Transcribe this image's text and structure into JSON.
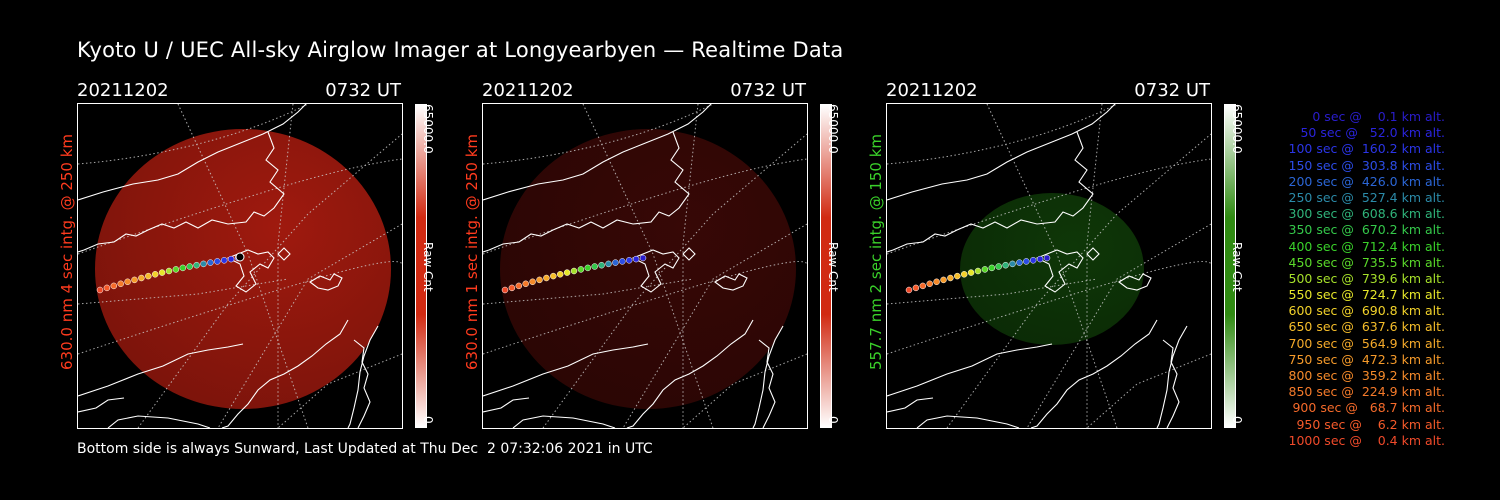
{
  "title": "Kyoto U / UEC All-sky Airglow Imager at Longyearbyen — Realtime Data",
  "footer": "Bottom side is always Sunward, Last Updated at Thu Dec  2 07:32:06 2021 in UTC",
  "panels": [
    {
      "date": "20211202",
      "time": "0732 UT",
      "side_label": "630.0 nm 4 sec intg. @ 250 km",
      "side_color": "#ff3b1e",
      "cbar_max": "65000.0",
      "cbar_min": "0",
      "cbar_unit": "Raw Cnt",
      "cbar_color": "#d12a12",
      "glow_color": "#b51d10",
      "glow_opacity": 0.88
    },
    {
      "date": "20211202",
      "time": "0732 UT",
      "side_label": "630.0 nm 1 sec intg. @ 250 km",
      "side_color": "#ff3b1e",
      "cbar_max": "65000.0",
      "cbar_min": "0",
      "cbar_unit": "Raw Cnt",
      "cbar_color": "#d12a12",
      "glow_color": "#3a0806",
      "glow_opacity": 0.95
    },
    {
      "date": "20211202",
      "time": "0732 UT",
      "side_label": "557.7 nm 2 sec intg. @ 150 km",
      "side_color": "#3ad12a",
      "cbar_max": "65000.0",
      "cbar_min": "0",
      "cbar_unit": "Raw Cnt",
      "cbar_color": "#2f8a12",
      "glow_color": "#0f3a08",
      "glow_opacity": 0.95
    }
  ],
  "legend": [
    {
      "text": "0 sec @    0.1 km alt.",
      "color": "#2a1dcc"
    },
    {
      "text": "50 sec @   52.0 km alt.",
      "color": "#2a24dd"
    },
    {
      "text": "100 sec @  160.2 km alt.",
      "color": "#2b35e6"
    },
    {
      "text": "150 sec @  303.8 km alt.",
      "color": "#2c4ce6"
    },
    {
      "text": "200 sec @  426.0 km alt.",
      "color": "#2b66d6"
    },
    {
      "text": "250 sec @  527.4 km alt.",
      "color": "#2b8aa8"
    },
    {
      "text": "300 sec @  608.6 km alt.",
      "color": "#2fb37a"
    },
    {
      "text": "350 sec @  670.2 km alt.",
      "color": "#34c84a"
    },
    {
      "text": "400 sec @  712.4 km alt.",
      "color": "#3ad12a"
    },
    {
      "text": "450 sec @  735.5 km alt.",
      "color": "#5ad82a"
    },
    {
      "text": "500 sec @  739.6 km alt.",
      "color": "#a6e02a"
    },
    {
      "text": "550 sec @  724.7 km alt.",
      "color": "#e6e62a"
    },
    {
      "text": "600 sec @  690.8 km alt.",
      "color": "#f2d22a"
    },
    {
      "text": "650 sec @  637.6 km alt.",
      "color": "#f5bd2a"
    },
    {
      "text": "700 sec @  564.9 km alt.",
      "color": "#f5aa2a"
    },
    {
      "text": "750 sec @  472.3 km alt.",
      "color": "#f59a2a"
    },
    {
      "text": "800 sec @  359.2 km alt.",
      "color": "#f58a2a"
    },
    {
      "text": "850 sec @  224.9 km alt.",
      "color": "#f57a2a"
    },
    {
      "text": "900 sec @   68.7 km alt.",
      "color": "#f56a2a"
    },
    {
      "text": "950 sec @    6.2 km alt.",
      "color": "#f55a2a"
    },
    {
      "text": "1000 sec @    0.4 km alt.",
      "color": "#f04a2a"
    }
  ]
}
